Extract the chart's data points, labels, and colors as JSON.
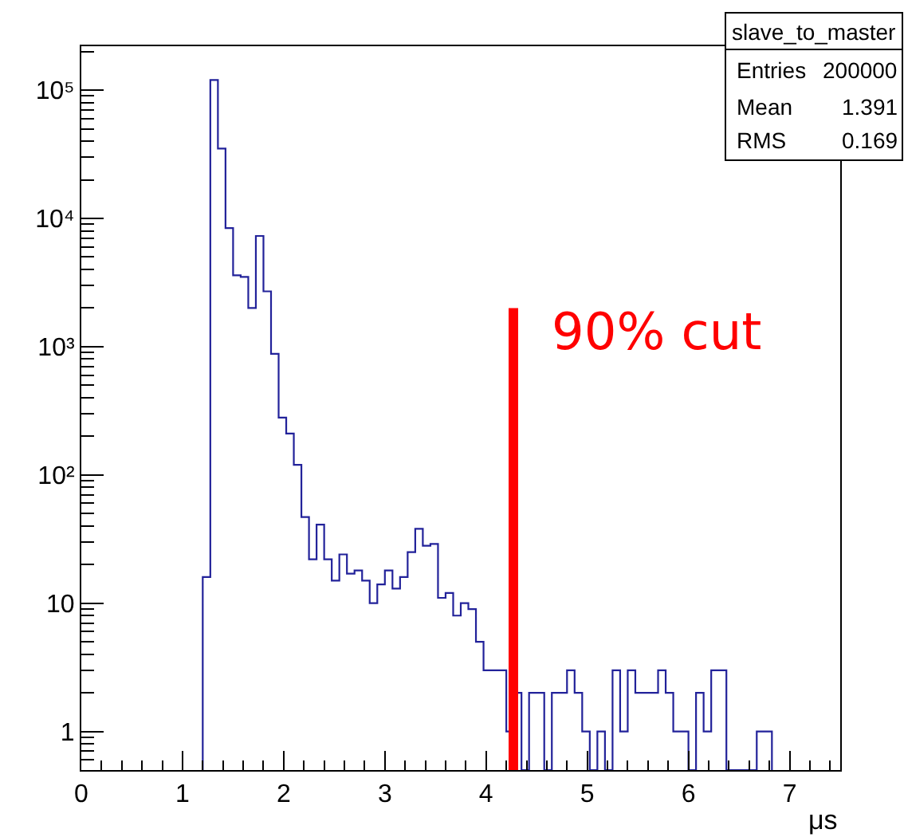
{
  "chart_data": {
    "type": "histogram",
    "log": "y",
    "xlabel": "μs",
    "annotations": [
      "slave_to_master",
      "Entries",
      "200000",
      "Mean",
      "1.391",
      "RMS",
      "0.169"
    ],
    "xlim": [
      0,
      7.5
    ],
    "ylim": [
      0.5,
      220000
    ],
    "xticks": [
      0,
      {
        "value": 0.2,
        "label": null
      },
      {
        "value": 0.4,
        "label": null
      },
      {
        "value": 0.6,
        "label": null
      },
      {
        "value": 0.8,
        "label": null
      },
      1,
      {
        "value": 1.2,
        "label": null
      },
      {
        "value": 1.4,
        "label": null
      },
      {
        "value": 1.6,
        "label": null
      },
      {
        "value": 1.8,
        "label": null
      },
      2,
      {
        "value": 2.2,
        "label": null
      },
      {
        "value": 2.4,
        "label": null
      },
      {
        "value": 2.6,
        "label": null
      },
      {
        "value": 2.8,
        "label": null
      },
      3,
      {
        "value": 3.2,
        "label": null
      },
      {
        "value": 3.4,
        "label": null
      },
      {
        "value": 3.6,
        "label": null
      },
      {
        "value": 3.8,
        "label": null
      },
      4,
      {
        "value": 4.2,
        "label": null
      },
      {
        "value": 4.4,
        "label": null
      },
      {
        "value": 4.6,
        "label": null
      },
      {
        "value": 4.8,
        "label": null
      },
      5,
      {
        "value": 5.2,
        "label": null
      },
      {
        "value": 5.4,
        "label": null
      },
      {
        "value": 5.6,
        "label": null
      },
      {
        "value": 5.8,
        "label": null
      },
      6,
      {
        "value": 6.2,
        "label": null
      },
      {
        "value": 6.4,
        "label": null
      },
      {
        "value": 6.6,
        "label": null
      },
      {
        "value": 6.8,
        "label": null
      },
      7,
      {
        "value": 7.2,
        "label": null
      },
      {
        "value": 7.4,
        "label": null
      }
    ],
    "yticks": [
      {
        "value": 0.6,
        "label": null
      },
      {
        "value": 0.7,
        "label": null
      },
      {
        "value": 0.8,
        "label": null
      },
      {
        "value": 0.9,
        "label": null
      },
      1,
      {
        "value": 2,
        "label": null
      },
      {
        "value": 3,
        "label": null
      },
      {
        "value": 4,
        "label": null
      },
      {
        "value": 5,
        "label": null
      },
      {
        "value": 6,
        "label": null
      },
      {
        "value": 7,
        "label": null
      },
      {
        "value": 8,
        "label": null
      },
      {
        "value": 9,
        "label": null
      },
      10,
      {
        "value": 20,
        "label": null
      },
      {
        "value": 30,
        "label": null
      },
      {
        "value": 40,
        "label": null
      },
      {
        "value": 50,
        "label": null
      },
      {
        "value": 60,
        "label": null
      },
      {
        "value": 70,
        "label": null
      },
      {
        "value": 80,
        "label": null
      },
      {
        "value": 90,
        "label": null
      },
      {
        "value": 100,
        "label": "10²"
      },
      {
        "value": 200,
        "label": null
      },
      {
        "value": 300,
        "label": null
      },
      {
        "value": 400,
        "label": null
      },
      {
        "value": 500,
        "label": null
      },
      {
        "value": 600,
        "label": null
      },
      {
        "value": 700,
        "label": null
      },
      {
        "value": 800,
        "label": null
      },
      {
        "value": 900,
        "label": null
      },
      {
        "value": 1000,
        "label": "10³"
      },
      {
        "value": 2000,
        "label": null
      },
      {
        "value": 3000,
        "label": null
      },
      {
        "value": 4000,
        "label": null
      },
      {
        "value": 5000,
        "label": null
      },
      {
        "value": 6000,
        "label": null
      },
      {
        "value": 7000,
        "label": null
      },
      {
        "value": 8000,
        "label": null
      },
      {
        "value": 9000,
        "label": null
      },
      {
        "value": 10000,
        "label": "10⁴"
      },
      {
        "value": 20000,
        "label": null
      },
      {
        "value": 30000,
        "label": null
      },
      {
        "value": 40000,
        "label": null
      },
      {
        "value": 50000,
        "label": null
      },
      {
        "value": 60000,
        "label": null
      },
      {
        "value": 70000,
        "label": null
      },
      {
        "value": 80000,
        "label": null
      },
      {
        "value": 90000,
        "label": null
      },
      {
        "value": 100000,
        "label": "10⁵"
      },
      {
        "value": 200000,
        "label": null
      }
    ],
    "series": [
      {
        "color": "#22229a",
        "bins": [
          1.2,
          1.275,
          1.35,
          1.425,
          1.5,
          1.575,
          1.65,
          1.725,
          1.8,
          1.875,
          1.95,
          2.025,
          2.1,
          2.175,
          2.25,
          2.325,
          2.4,
          2.475,
          2.55,
          2.625,
          2.7,
          2.775,
          2.85,
          2.925,
          3.0,
          3.075,
          3.15,
          3.225,
          3.3,
          3.375,
          3.45,
          3.525,
          3.6,
          3.675,
          3.75,
          3.825,
          3.9,
          3.975,
          4.05,
          4.125,
          4.2,
          4.275,
          4.35,
          4.425,
          4.5,
          4.575,
          4.65,
          4.725,
          4.8,
          4.875,
          4.95,
          5.025,
          5.1,
          5.175,
          5.25,
          5.325,
          5.4,
          5.475,
          5.55,
          5.625,
          5.7,
          5.775,
          5.85,
          5.925,
          6.0,
          6.075,
          6.15,
          6.225,
          6.3,
          6.375,
          6.45,
          6.525,
          6.6,
          6.675,
          6.75,
          6.825
        ],
        "values": [
          16,
          120000,
          35000,
          8400,
          3600,
          3500,
          2000,
          7300,
          2700,
          880,
          280,
          210,
          120,
          47,
          22,
          41,
          22,
          15,
          24,
          17,
          18,
          15,
          10,
          14,
          18,
          13,
          16,
          25,
          38,
          28,
          29,
          11,
          12,
          8,
          10,
          9,
          5,
          3,
          3,
          3,
          1,
          2,
          null,
          2,
          2,
          null,
          2,
          2,
          3,
          2,
          1,
          null,
          1,
          null,
          3,
          1,
          3,
          2,
          2,
          2,
          3,
          2,
          1,
          1,
          null,
          2,
          1,
          3,
          3,
          null,
          null,
          null,
          null,
          1,
          1
        ]
      },
      {
        "type": "line",
        "name": "90% cut",
        "color": "#ff0000",
        "x": [
          4.27,
          4.27
        ],
        "values": [
          0.5,
          2000
        ]
      }
    ]
  }
}
